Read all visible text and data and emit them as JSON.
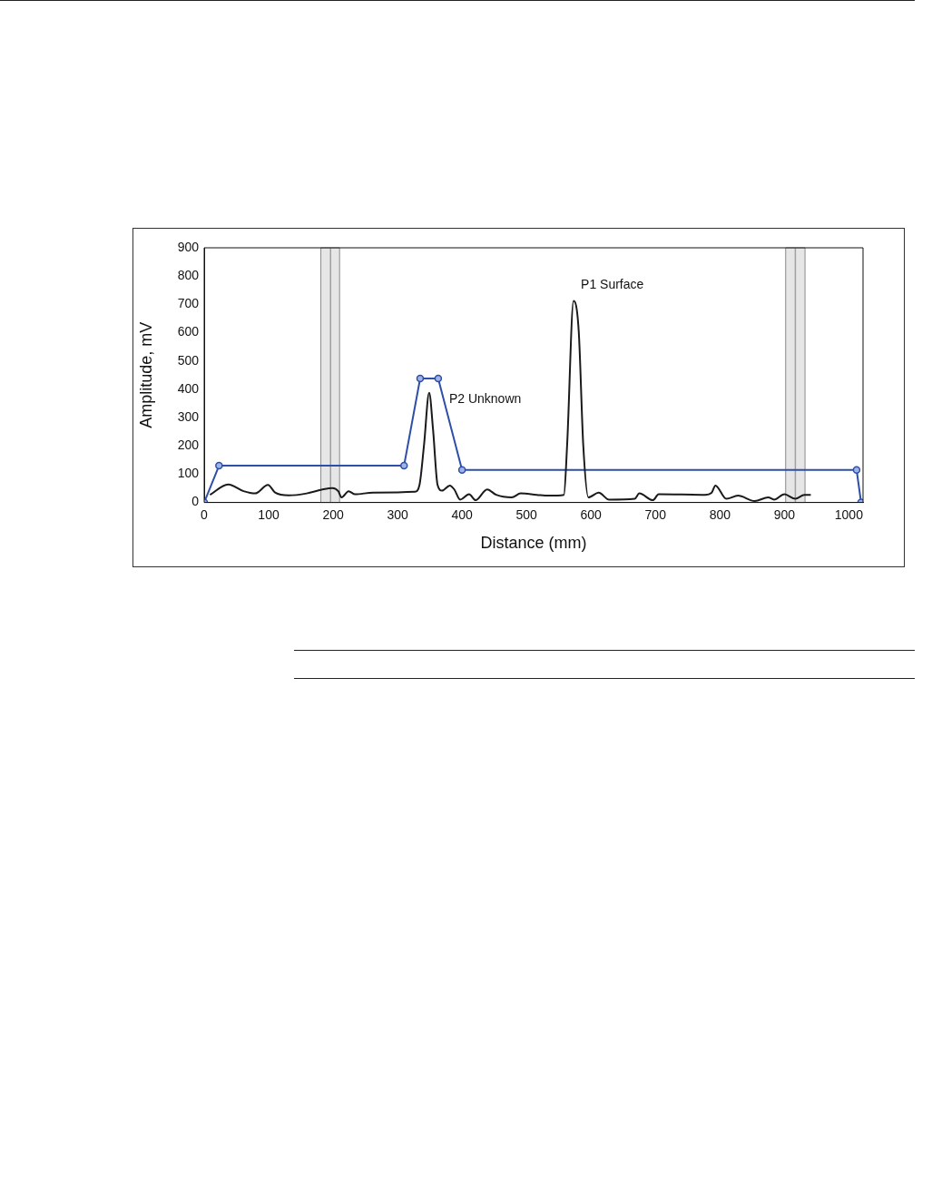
{
  "chart_data": {
    "type": "line",
    "xlabel": "Distance (mm)",
    "ylabel": "Amplitude, mV",
    "xlim": [
      0,
      1022
    ],
    "ylim": [
      0,
      900
    ],
    "xticks": [
      0,
      100,
      200,
      300,
      400,
      500,
      600,
      700,
      800,
      900,
      1000
    ],
    "yticks": [
      0,
      100,
      200,
      300,
      400,
      500,
      600,
      700,
      800,
      900
    ],
    "grid": false,
    "legend": false,
    "line_style": "solid",
    "series": [
      {
        "color": "#1a1a1a",
        "marker": "none",
        "x": [
          9,
          37,
          61,
          79,
          99,
          110,
          131,
          159,
          182,
          199,
          208,
          213,
          224,
          234,
          262,
          327,
          334,
          341,
          349,
          355,
          362,
          369,
          381,
          388,
          397,
          411,
          421,
          439,
          453,
          477,
          491,
          516,
          535,
          558,
          563,
          573,
          581,
          588,
          596,
          612,
          628,
          668,
          675,
          696,
          705,
          777,
          787,
          793,
          810,
          828,
          854,
          875,
          884,
          900,
          917,
          931,
          941
        ],
        "values": [
          27,
          64,
          40,
          32,
          62,
          35,
          25,
          32,
          45,
          51,
          40,
          18,
          40,
          29,
          35,
          38,
          62,
          203,
          388,
          258,
          62,
          42,
          60,
          46,
          10,
          29,
          8,
          46,
          27,
          18,
          32,
          27,
          24,
          27,
          203,
          712,
          605,
          203,
          18,
          35,
          10,
          13,
          32,
          8,
          29,
          27,
          34,
          60,
          13,
          24,
          5,
          18,
          10,
          29,
          13,
          27,
          27
        ]
      },
      {
        "color": "#2e4fa8",
        "marker": "circle",
        "x": [
          0,
          23,
          310,
          335,
          363,
          400,
          1012,
          1019
        ],
        "values": [
          0,
          130,
          130,
          438,
          438,
          115,
          115,
          0
        ]
      }
    ],
    "bands": [
      {
        "axis": "x",
        "from": 181,
        "to": 210,
        "color": "#e6e6e6"
      },
      {
        "axis": "x",
        "from": 902,
        "to": 932,
        "color": "#e6e6e6"
      }
    ],
    "ref_lines": [
      {
        "axis": "x",
        "value": 196,
        "color": "#a0a0a0"
      },
      {
        "axis": "x",
        "value": 917,
        "color": "#a0a0a0"
      }
    ],
    "annotations": [
      {
        "text": "P1 Surface",
        "x": 573,
        "y": 712
      },
      {
        "text": "P2 Unknown",
        "x": 349,
        "y": 388
      }
    ]
  }
}
